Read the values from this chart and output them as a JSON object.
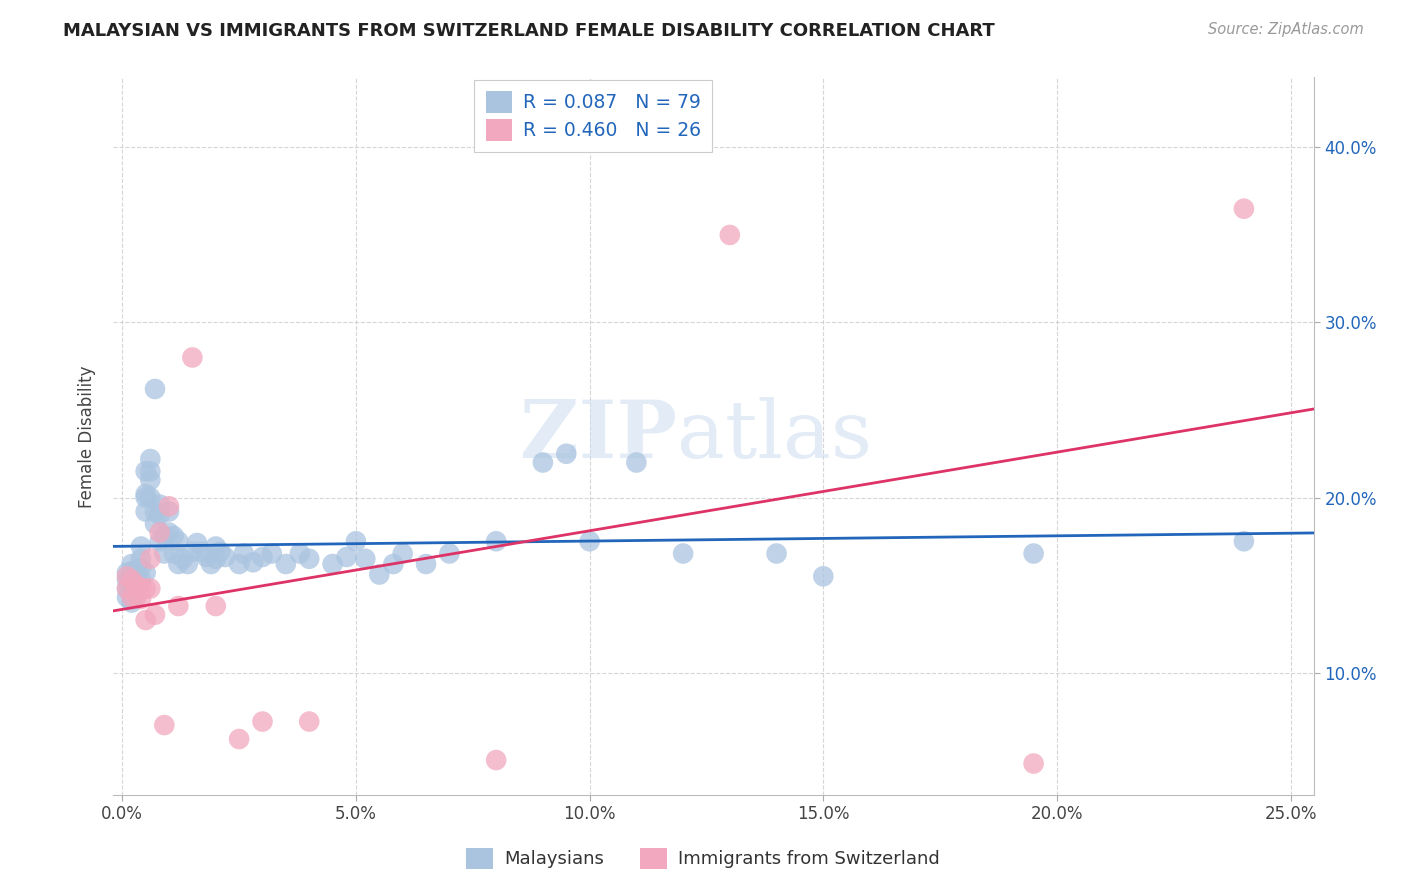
{
  "title": "MALAYSIAN VS IMMIGRANTS FROM SWITZERLAND FEMALE DISABILITY CORRELATION CHART",
  "source": "Source: ZipAtlas.com",
  "xlabel_ticks": [
    "0.0%",
    "5.0%",
    "10.0%",
    "15.0%",
    "20.0%",
    "25.0%"
  ],
  "xlabel_values": [
    0.0,
    0.05,
    0.1,
    0.15,
    0.2,
    0.25
  ],
  "ylabel_ticks": [
    "10.0%",
    "20.0%",
    "30.0%",
    "40.0%"
  ],
  "ylabel_values": [
    0.1,
    0.2,
    0.3,
    0.4
  ],
  "xlim": [
    -0.002,
    0.255
  ],
  "ylim": [
    0.03,
    0.44
  ],
  "ylabel": "Female Disability",
  "legend_r_blue": "R = 0.087",
  "legend_n_blue": "N = 79",
  "legend_r_pink": "R = 0.460",
  "legend_n_pink": "N = 26",
  "legend_label_blue": "Malaysians",
  "legend_label_pink": "Immigrants from Switzerland",
  "blue_scatter_color": "#aac4e0",
  "pink_scatter_color": "#f2a8be",
  "blue_line_color": "#2266bb",
  "pink_line_color": "#dd3366",
  "watermark_color": "#ccddf0",
  "watermark": "ZIPAtlas",
  "malaysians_x": [
    0.001,
    0.001,
    0.001,
    0.001,
    0.002,
    0.002,
    0.002,
    0.002,
    0.002,
    0.003,
    0.003,
    0.003,
    0.003,
    0.003,
    0.004,
    0.004,
    0.004,
    0.004,
    0.005,
    0.005,
    0.005,
    0.005,
    0.005,
    0.006,
    0.006,
    0.006,
    0.006,
    0.007,
    0.007,
    0.007,
    0.008,
    0.008,
    0.008,
    0.009,
    0.009,
    0.01,
    0.01,
    0.011,
    0.011,
    0.012,
    0.012,
    0.013,
    0.014,
    0.015,
    0.016,
    0.017,
    0.018,
    0.019,
    0.02,
    0.02,
    0.021,
    0.022,
    0.025,
    0.026,
    0.028,
    0.03,
    0.032,
    0.035,
    0.038,
    0.04,
    0.045,
    0.048,
    0.05,
    0.052,
    0.055,
    0.058,
    0.06,
    0.065,
    0.07,
    0.08,
    0.09,
    0.095,
    0.1,
    0.11,
    0.12,
    0.14,
    0.15,
    0.195,
    0.24
  ],
  "malaysians_y": [
    0.153,
    0.157,
    0.148,
    0.143,
    0.158,
    0.155,
    0.145,
    0.14,
    0.162,
    0.148,
    0.154,
    0.158,
    0.15,
    0.144,
    0.16,
    0.153,
    0.165,
    0.172,
    0.202,
    0.192,
    0.157,
    0.2,
    0.215,
    0.215,
    0.222,
    0.21,
    0.2,
    0.262,
    0.185,
    0.192,
    0.196,
    0.175,
    0.19,
    0.168,
    0.178,
    0.192,
    0.18,
    0.168,
    0.178,
    0.162,
    0.175,
    0.165,
    0.162,
    0.169,
    0.174,
    0.169,
    0.166,
    0.162,
    0.172,
    0.165,
    0.169,
    0.166,
    0.162,
    0.168,
    0.163,
    0.166,
    0.168,
    0.162,
    0.168,
    0.165,
    0.162,
    0.166,
    0.175,
    0.165,
    0.156,
    0.162,
    0.168,
    0.162,
    0.168,
    0.175,
    0.22,
    0.225,
    0.175,
    0.22,
    0.168,
    0.168,
    0.155,
    0.168,
    0.175
  ],
  "swiss_x": [
    0.001,
    0.001,
    0.002,
    0.002,
    0.003,
    0.003,
    0.004,
    0.004,
    0.005,
    0.005,
    0.006,
    0.006,
    0.007,
    0.008,
    0.009,
    0.01,
    0.012,
    0.015,
    0.02,
    0.025,
    0.03,
    0.04,
    0.08,
    0.13,
    0.195,
    0.24
  ],
  "swiss_y": [
    0.148,
    0.155,
    0.153,
    0.143,
    0.15,
    0.143,
    0.142,
    0.148,
    0.148,
    0.13,
    0.165,
    0.148,
    0.133,
    0.18,
    0.07,
    0.195,
    0.138,
    0.28,
    0.138,
    0.062,
    0.072,
    0.072,
    0.05,
    0.35,
    0.048,
    0.365
  ]
}
